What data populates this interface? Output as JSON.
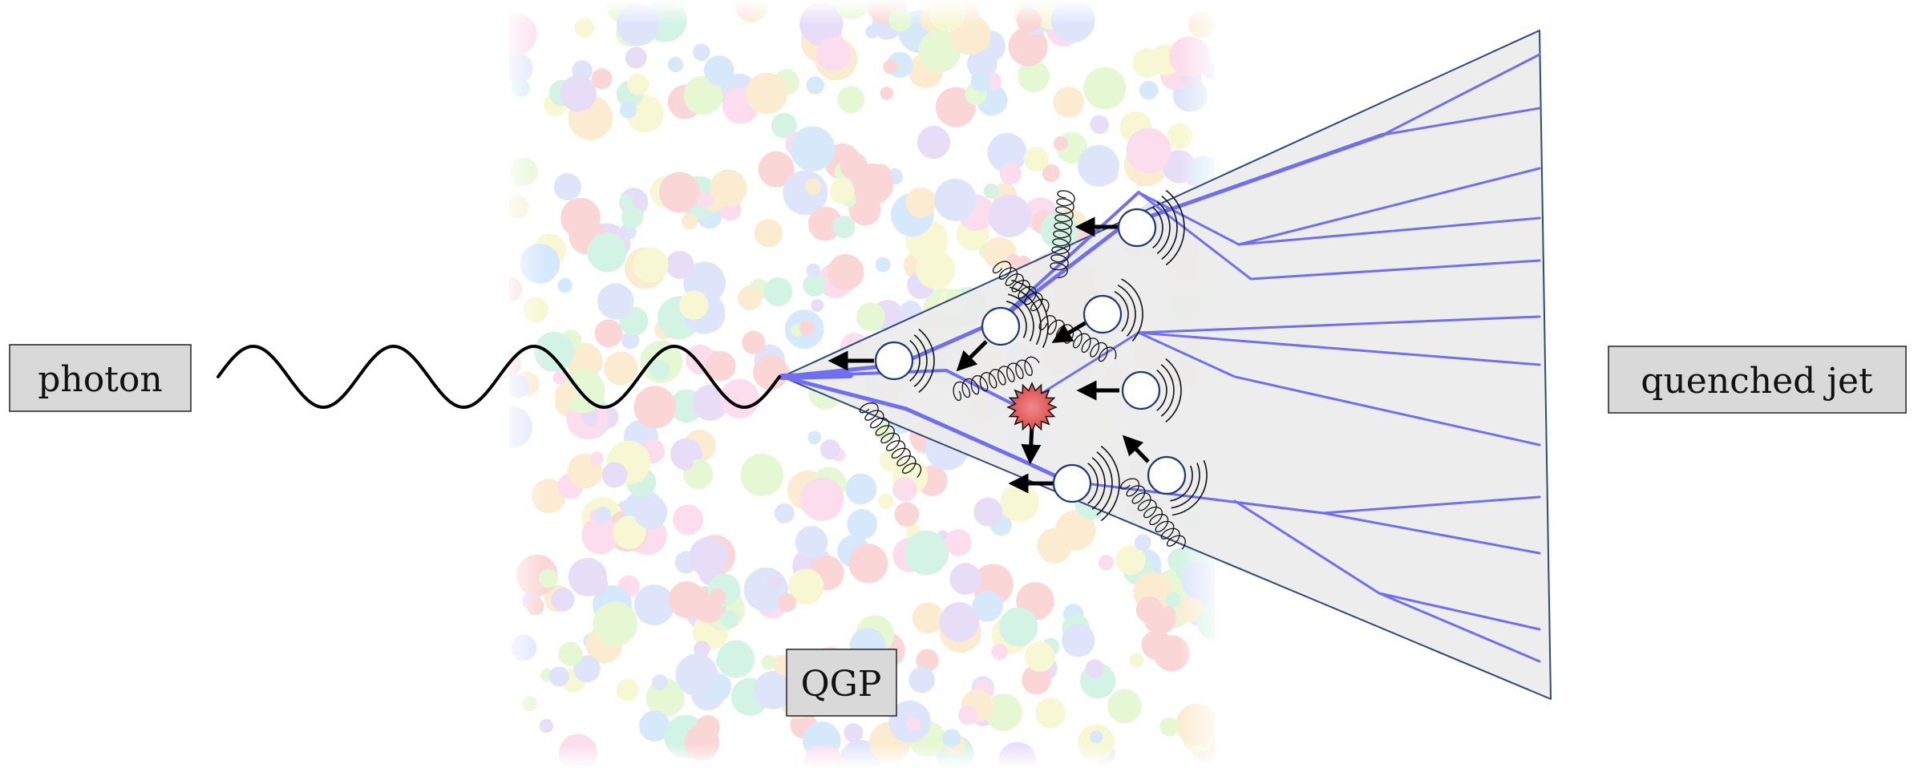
{
  "labels": {
    "photon": "photon",
    "quenched_jet": "quenched jet",
    "qgp": "QGP"
  },
  "colors": {
    "label_fill": "#d9d9d9",
    "parton_line": "#6f6ff0",
    "cone_fill": "#ececec",
    "cone_edge": "#2e4a7a",
    "interaction_star": "#e05a5a",
    "blob_palette": [
      "#f6a5a5",
      "#a5d0f6",
      "#c8f0a0",
      "#f6d79a",
      "#cdb6f0",
      "#f6b6d8",
      "#a0e6c8",
      "#b7c8f6",
      "#f0f0a0"
    ]
  },
  "icons": [
    "photon-wave",
    "gluon-spring",
    "scattering-center",
    "recoil-arrow",
    "radiation-arc"
  ]
}
